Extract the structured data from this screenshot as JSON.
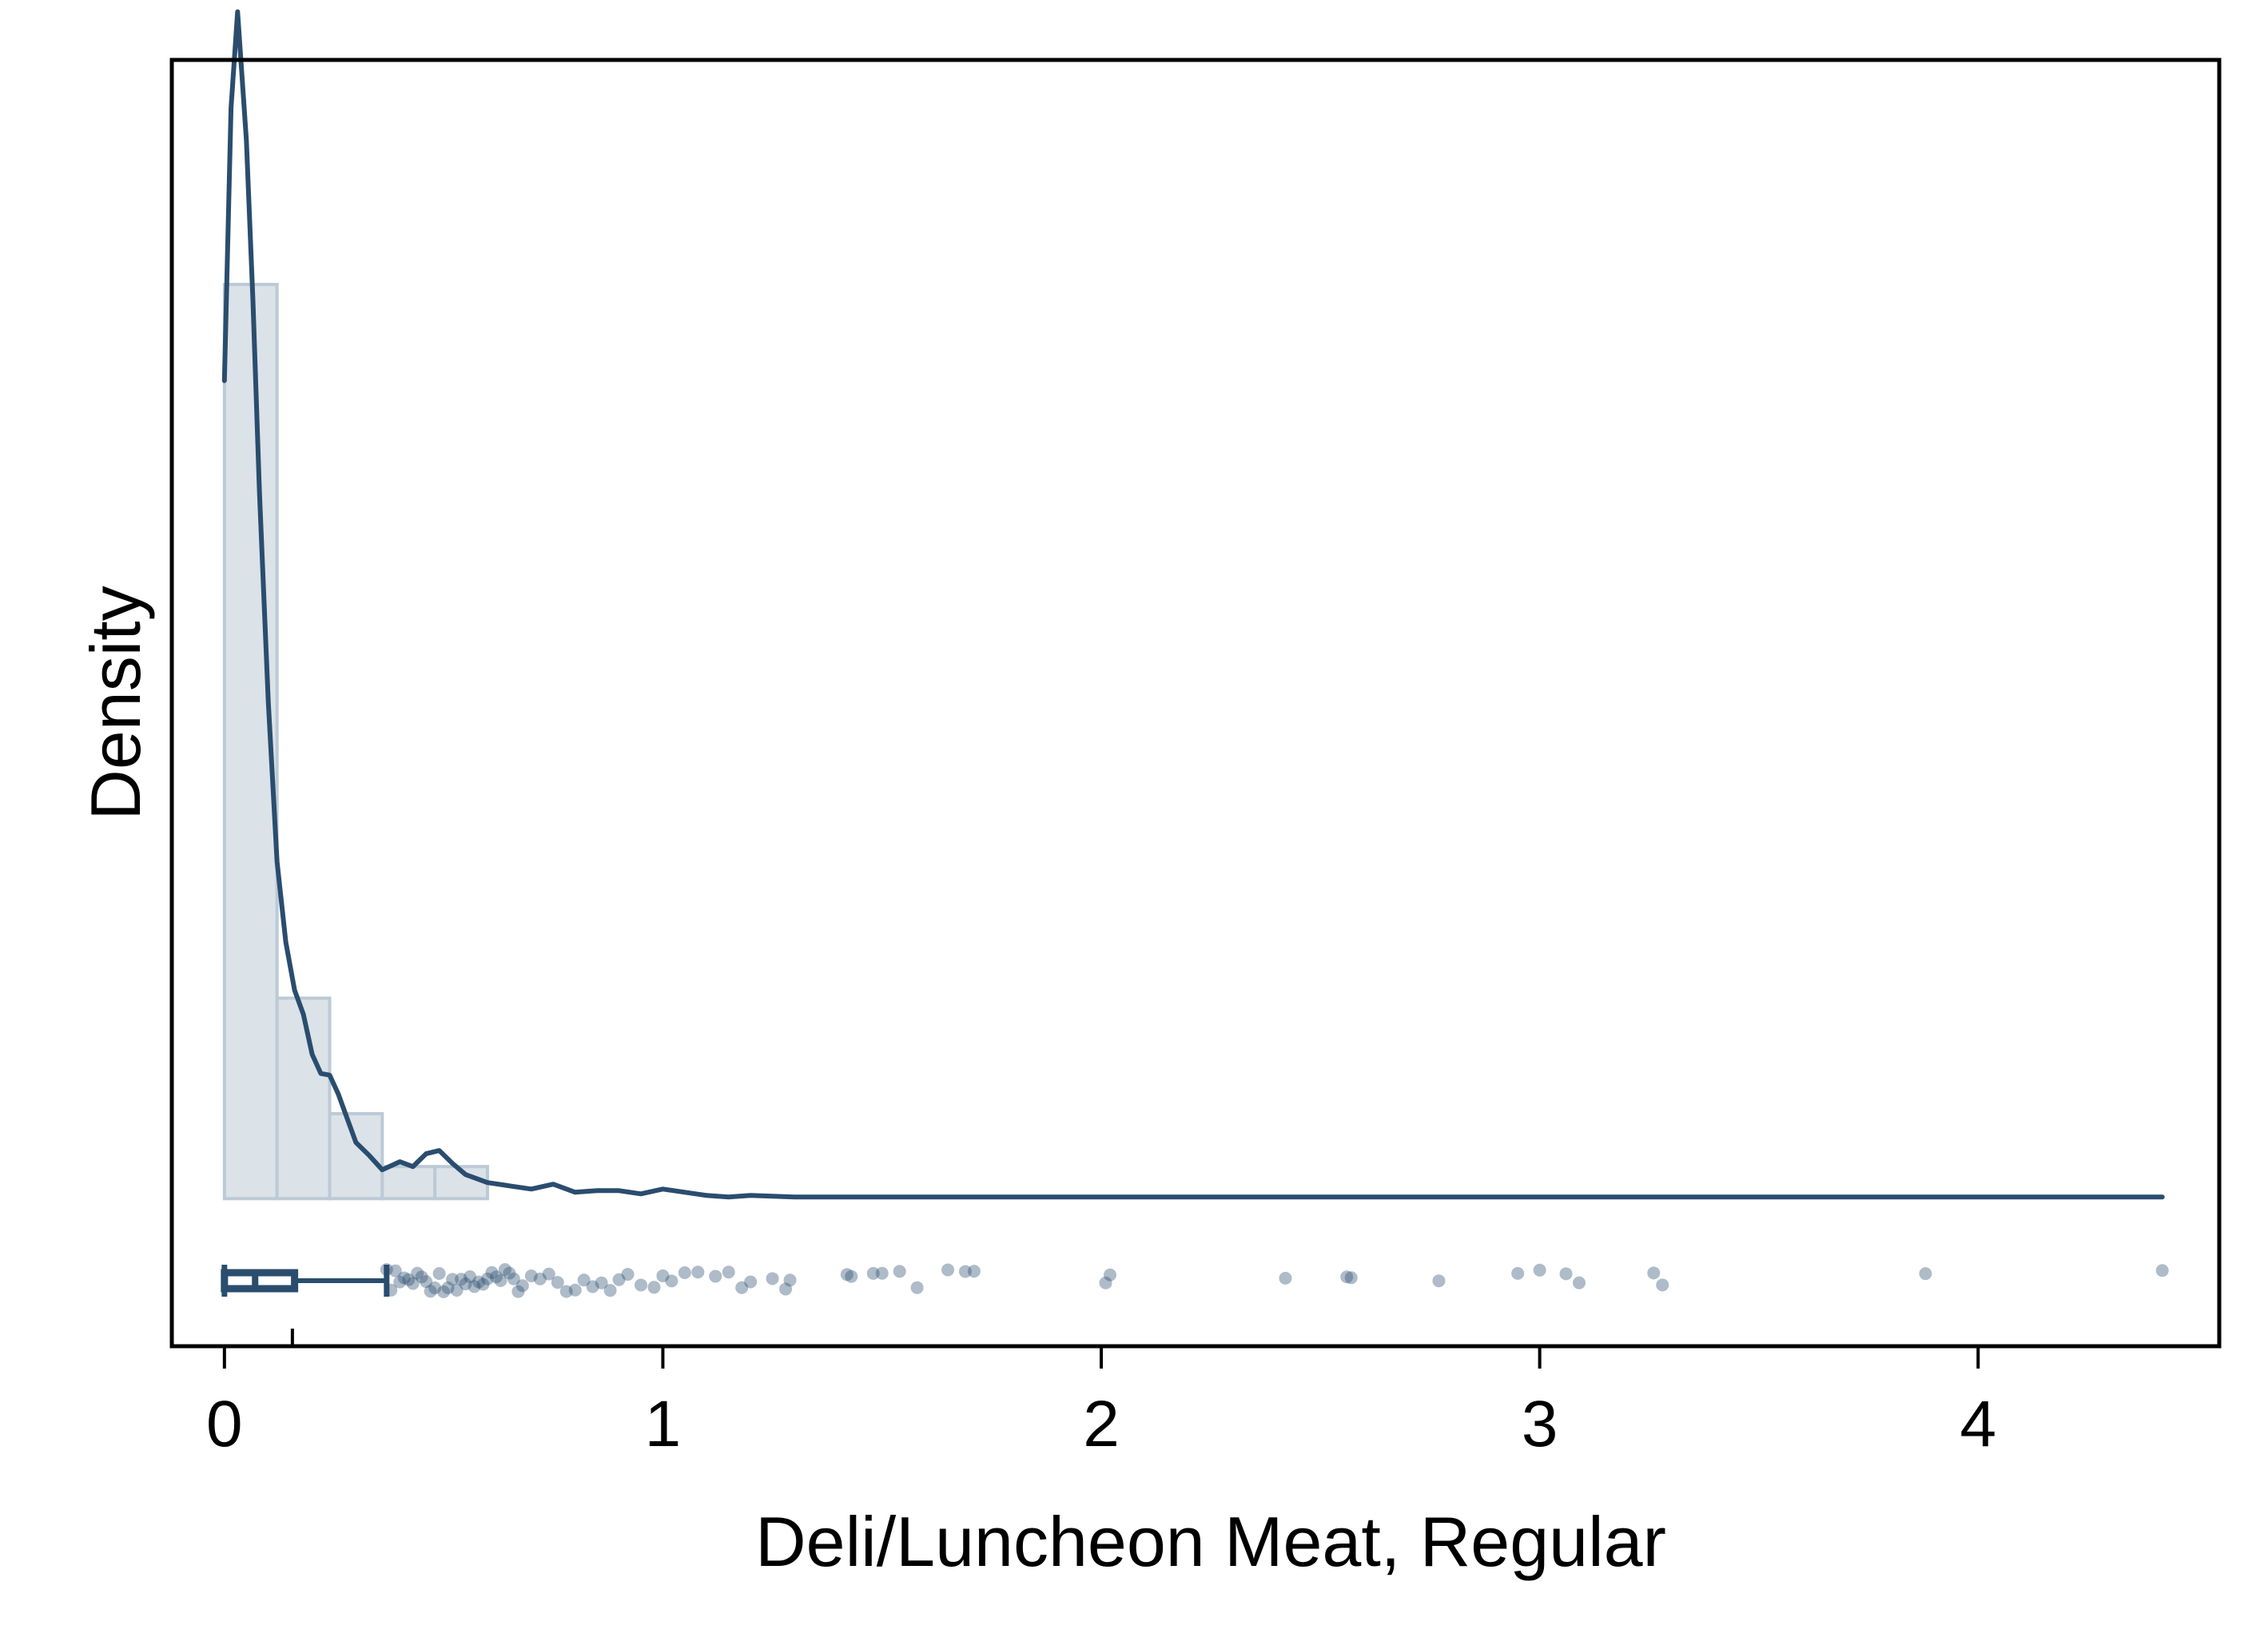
{
  "chart_data": {
    "type": "histogram",
    "title": "",
    "xlabel": "Deli/Luncheon Meat, Regular",
    "ylabel": "Density",
    "xlim": [
      -0.12,
      4.55
    ],
    "ylim": [
      -0.92,
      7.1
    ],
    "x_ticks": [
      0,
      1,
      2,
      3,
      4
    ],
    "x_tick_labels": [
      "0",
      "1",
      "2",
      "3",
      "4"
    ],
    "y_ticks_shown": false,
    "grid": false,
    "legend": "none",
    "colors": {
      "line": "#2a4d6e",
      "hist_fill": "#dbe2e8",
      "hist_edge": "#bccad6",
      "points": "#2a4d6e",
      "frame": "#000000"
    },
    "histogram": {
      "bin_edges": [
        0.0,
        0.12,
        0.24,
        0.36,
        0.48,
        0.6
      ],
      "density": [
        5.7,
        1.25,
        0.53,
        0.2,
        0.2
      ]
    },
    "kde": {
      "x": [
        0.0,
        0.015,
        0.03,
        0.05,
        0.065,
        0.08,
        0.1,
        0.12,
        0.14,
        0.16,
        0.18,
        0.2,
        0.22,
        0.24,
        0.26,
        0.28,
        0.3,
        0.33,
        0.36,
        0.4,
        0.43,
        0.46,
        0.49,
        0.52,
        0.55,
        0.6,
        0.65,
        0.7,
        0.75,
        0.8,
        0.85,
        0.9,
        0.95,
        1.0,
        1.05,
        1.1,
        1.15,
        1.2,
        1.3,
        1.5,
        1.75,
        2.0,
        2.5,
        3.0,
        3.5,
        4.0,
        4.42
      ],
      "y": [
        5.1,
        6.8,
        7.4,
        6.6,
        5.6,
        4.4,
        3.1,
        2.1,
        1.6,
        1.3,
        1.15,
        0.9,
        0.78,
        0.77,
        0.65,
        0.5,
        0.35,
        0.27,
        0.18,
        0.23,
        0.2,
        0.28,
        0.3,
        0.22,
        0.15,
        0.1,
        0.08,
        0.06,
        0.09,
        0.04,
        0.05,
        0.05,
        0.03,
        0.06,
        0.04,
        0.02,
        0.01,
        0.02,
        0.01,
        0.01,
        0.01,
        0.01,
        0.01,
        0.01,
        0.01,
        0.01,
        0.01
      ]
    },
    "boxplot": {
      "min": 0.0,
      "q1": 0.03,
      "median": 0.07,
      "q3": 0.16,
      "whisker_high": 0.37
    },
    "mean_marker": 0.155,
    "outliers": [
      0.37,
      0.38,
      0.39,
      0.4,
      0.41,
      0.42,
      0.43,
      0.44,
      0.45,
      0.46,
      0.47,
      0.48,
      0.49,
      0.5,
      0.51,
      0.52,
      0.53,
      0.54,
      0.55,
      0.56,
      0.57,
      0.58,
      0.59,
      0.6,
      0.61,
      0.62,
      0.63,
      0.64,
      0.65,
      0.66,
      0.67,
      0.68,
      0.7,
      0.72,
      0.74,
      0.76,
      0.78,
      0.8,
      0.82,
      0.84,
      0.86,
      0.88,
      0.9,
      0.92,
      0.95,
      0.98,
      1.0,
      1.02,
      1.05,
      1.08,
      1.12,
      1.15,
      1.18,
      1.2,
      1.25,
      1.28,
      1.29,
      1.42,
      1.43,
      1.48,
      1.5,
      1.54,
      1.58,
      1.65,
      1.69,
      1.71,
      2.01,
      2.02,
      2.42,
      2.56,
      2.57,
      2.77,
      2.95,
      3.0,
      3.06,
      3.09,
      3.26,
      3.28,
      3.88,
      4.42
    ]
  }
}
